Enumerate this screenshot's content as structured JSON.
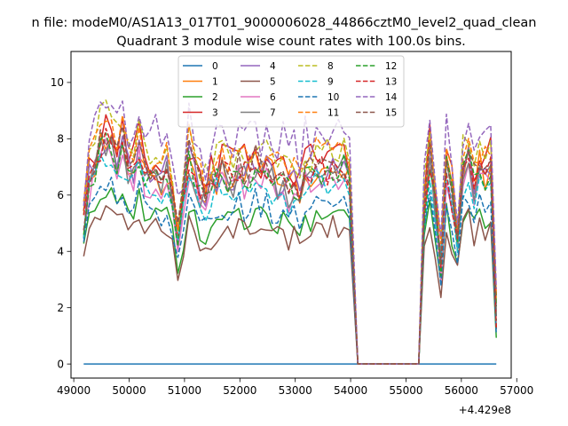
{
  "chart_data": {
    "type": "line",
    "suptitle": "n file: modeM0/AS1A13_017T01_9000006028_44866cztM0_level2_quad_clean",
    "title": "Quadrant 3 module wise count rates with 100.0s bins.",
    "xlabel": "",
    "ylabel": "",
    "x_offset_label": "+4.429e8",
    "xlim": [
      48950,
      56900
    ],
    "ylim": [
      -0.5,
      11.1
    ],
    "xticks": [
      49000,
      50000,
      51000,
      52000,
      53000,
      54000,
      55000,
      56000,
      57000
    ],
    "xtick_labels": [
      "49000",
      "50000",
      "51000",
      "52000",
      "53000",
      "54000",
      "55000",
      "56000",
      "57000"
    ],
    "yticks": [
      0,
      2,
      4,
      6,
      8,
      10
    ],
    "ytick_labels": [
      "0",
      "2",
      "4",
      "6",
      "8",
      "10"
    ],
    "grid": false,
    "legend_position": "upper-center",
    "legend_columns": 4,
    "segment1_x_range": [
      49180,
      53980
    ],
    "gap_x": [
      54130,
      54230,
      55130,
      55230
    ],
    "segment2_x_range": [
      55330,
      56630
    ],
    "bin_width": 100,
    "series": [
      {
        "name": "0",
        "color": "#1f77b4",
        "dashed": false,
        "base": 0.0,
        "amp": 0.0
      },
      {
        "name": "1",
        "color": "#ff7f0e",
        "dashed": false,
        "base": 7.0,
        "amp": 0.6
      },
      {
        "name": "2",
        "color": "#2ca02c",
        "dashed": false,
        "base": 5.4,
        "amp": 0.45
      },
      {
        "name": "3",
        "color": "#d62728",
        "dashed": false,
        "base": 7.5,
        "amp": 0.7
      },
      {
        "name": "4",
        "color": "#9467bd",
        "dashed": false,
        "base": 7.0,
        "amp": 0.6
      },
      {
        "name": "5",
        "color": "#8c564b",
        "dashed": false,
        "base": 4.9,
        "amp": 0.4
      },
      {
        "name": "6",
        "color": "#e377c2",
        "dashed": false,
        "base": 6.7,
        "amp": 0.55
      },
      {
        "name": "7",
        "color": "#7f7f7f",
        "dashed": false,
        "base": 6.9,
        "amp": 0.55
      },
      {
        "name": "8",
        "color": "#bcbd22",
        "dashed": true,
        "base": 7.8,
        "amp": 0.6
      },
      {
        "name": "9",
        "color": "#17becf",
        "dashed": true,
        "base": 6.5,
        "amp": 0.55
      },
      {
        "name": "10",
        "color": "#1f77b4",
        "dashed": true,
        "base": 5.7,
        "amp": 0.45
      },
      {
        "name": "11",
        "color": "#ff7f0e",
        "dashed": true,
        "base": 7.7,
        "amp": 0.6
      },
      {
        "name": "12",
        "color": "#2ca02c",
        "dashed": true,
        "base": 6.9,
        "amp": 0.55
      },
      {
        "name": "13",
        "color": "#d62728",
        "dashed": true,
        "base": 7.0,
        "amp": 0.55
      },
      {
        "name": "14",
        "color": "#9467bd",
        "dashed": true,
        "base": 8.3,
        "amp": 0.7
      },
      {
        "name": "15",
        "color": "#8c564b",
        "dashed": true,
        "base": 7.2,
        "amp": 0.55
      }
    ],
    "profile": {
      "seg1": [
        0.72,
        0.93,
        1.0,
        1.1,
        1.15,
        1.12,
        1.05,
        1.1,
        0.98,
        1.0,
        1.08,
        0.97,
        0.95,
        0.99,
        0.93,
        0.98,
        0.86,
        0.64,
        0.82,
        1.05,
        0.97,
        0.88,
        0.84,
        0.9,
        0.94,
        0.99,
        0.95,
        0.93,
        1.0,
        0.95,
        0.98,
        1.02,
        0.97,
        1.0,
        0.95,
        0.92,
        0.96,
        0.88,
        0.92,
        0.85,
        0.98,
        0.95,
        1.02,
        0.98,
        0.95,
        1.0,
        0.97,
        1.0,
        0.94,
        0.96
      ],
      "seg2": [
        0.8,
        1.05,
        0.8,
        0.5,
        1.0,
        0.85,
        0.65,
        0.98,
        1.05,
        0.92,
        1.0,
        0.94,
        0.98,
        1.0
      ],
      "end_value_factor": 0.25
    }
  }
}
